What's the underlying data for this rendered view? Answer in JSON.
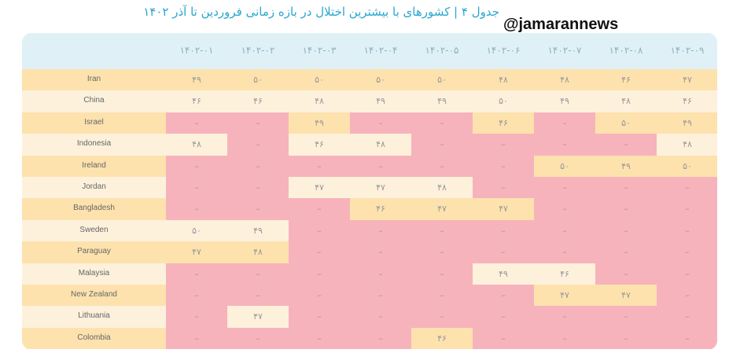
{
  "header": {
    "title": "جدول ۴ | کشورهای با بیشترین اختلال در بازه زمانی فروردین تا آذر ۱۴۰۲",
    "watermark": "@jamarannews"
  },
  "table": {
    "columns": [
      "۱۴۰۲-۰۱",
      "۱۴۰۲-۰۲",
      "۱۴۰۲-۰۳",
      "۱۴۰۲-۰۴",
      "۱۴۰۲-۰۵",
      "۱۴۰۲-۰۶",
      "۱۴۰۲-۰۷",
      "۱۴۰۲-۰۸",
      "۱۴۰۲-۰۹"
    ],
    "rows": [
      {
        "country": "Iran",
        "cells": [
          "۴۹",
          "۵۰",
          "۵۰",
          "۵۰",
          "۵۰",
          "۴۸",
          "۴۸",
          "۴۶",
          "۴۷"
        ]
      },
      {
        "country": "China",
        "cells": [
          "۴۶",
          "۴۶",
          "۴۸",
          "۴۹",
          "۴۹",
          "۵۰",
          "۴۹",
          "۴۸",
          "۴۶"
        ]
      },
      {
        "country": "Israel",
        "cells": [
          "–",
          "–",
          "۴۹",
          "–",
          "–",
          "۴۶",
          "–",
          "۵۰",
          "۴۹"
        ]
      },
      {
        "country": "Indonesia",
        "cells": [
          "۴۸",
          "–",
          "۴۶",
          "۴۸",
          "–",
          "–",
          "–",
          "–",
          "۴۸"
        ]
      },
      {
        "country": "Ireland",
        "cells": [
          "–",
          "–",
          "–",
          "–",
          "–",
          "–",
          "۵۰",
          "۴۹",
          "۵۰"
        ]
      },
      {
        "country": "Jordan",
        "cells": [
          "–",
          "–",
          "۴۷",
          "۴۷",
          "۴۸",
          "–",
          "–",
          "–",
          "–"
        ]
      },
      {
        "country": "Bangladesh",
        "cells": [
          "–",
          "–",
          "–",
          "۴۶",
          "۴۷",
          "۴۷",
          "–",
          "–",
          "–"
        ]
      },
      {
        "country": "Sweden",
        "cells": [
          "۵۰",
          "۴۹",
          "–",
          "–",
          "–",
          "–",
          "–",
          "–",
          "–"
        ]
      },
      {
        "country": "Paraguay",
        "cells": [
          "۴۷",
          "۴۸",
          "–",
          "–",
          "–",
          "–",
          "–",
          "–",
          "–"
        ]
      },
      {
        "country": "Malaysia",
        "cells": [
          "–",
          "–",
          "–",
          "–",
          "–",
          "۴۹",
          "۴۶",
          "–",
          "–"
        ]
      },
      {
        "country": "New Zealand",
        "cells": [
          "–",
          "–",
          "–",
          "–",
          "–",
          "–",
          "۴۷",
          "۴۷",
          "–"
        ]
      },
      {
        "country": "Lithuania",
        "cells": [
          "–",
          "۴۷",
          "–",
          "–",
          "–",
          "–",
          "–",
          "–",
          "–"
        ]
      },
      {
        "country": "Colombia",
        "cells": [
          "–",
          "–",
          "–",
          "–",
          "۴۶",
          "–",
          "–",
          "–",
          "–"
        ]
      }
    ],
    "highlight_color": "#f7b3bb"
  }
}
